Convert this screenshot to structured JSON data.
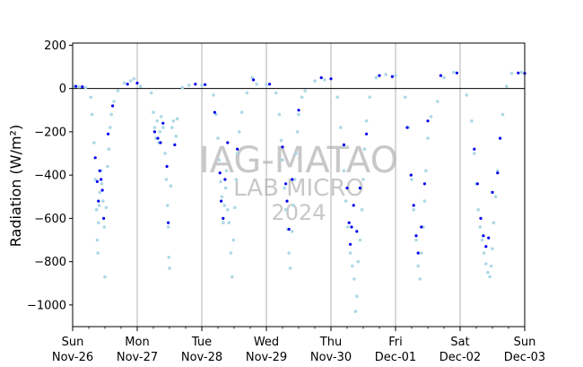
{
  "chart_data": {
    "type": "scatter",
    "ylabel": "Radiation (W/m²)",
    "ylim": [
      -1100,
      210
    ],
    "yticks": [
      200,
      0,
      -200,
      -400,
      -600,
      -800,
      -1000
    ],
    "xlim": [
      0,
      7
    ],
    "xticks": [
      {
        "x": 0,
        "day": "Sun",
        "date": "Nov-26"
      },
      {
        "x": 1,
        "day": "Mon",
        "date": "Nov-27"
      },
      {
        "x": 2,
        "day": "Tue",
        "date": "Nov-28"
      },
      {
        "x": 3,
        "day": "Wed",
        "date": "Nov-29"
      },
      {
        "x": 4,
        "day": "Thu",
        "date": "Nov-30"
      },
      {
        "x": 5,
        "day": "Fri",
        "date": "Dec-01"
      },
      {
        "x": 6,
        "day": "Sat",
        "date": "Dec-02"
      },
      {
        "x": 7,
        "day": "Sun",
        "date": "Dec-03"
      }
    ],
    "grid": "vertical",
    "zero_line": 0,
    "watermark": [
      "IAG-MATAO",
      "LAB MICRO",
      "2024"
    ],
    "colors": {
      "series_light": "#add8e6",
      "series_dark": "#0000ee",
      "zero_line": "#000000",
      "grid": "#b0b0b0",
      "watermark": "#c8c8c8"
    },
    "series": [
      {
        "values": [
          [
            0.02,
            10
          ],
          [
            0.1,
            8
          ],
          [
            0.2,
            5
          ],
          [
            0.28,
            -40
          ],
          [
            0.3,
            -120
          ],
          [
            0.33,
            -250
          ],
          [
            0.35,
            -420
          ],
          [
            0.37,
            -560
          ],
          [
            0.38,
            -700
          ],
          [
            0.39,
            -760
          ],
          [
            0.4,
            -620
          ],
          [
            0.41,
            -540
          ],
          [
            0.42,
            -480
          ],
          [
            0.44,
            -380
          ],
          [
            0.45,
            -440
          ],
          [
            0.47,
            -520
          ],
          [
            0.49,
            -640
          ],
          [
            0.5,
            -870
          ],
          [
            0.52,
            -550
          ],
          [
            0.54,
            -360
          ],
          [
            0.56,
            -280
          ],
          [
            0.58,
            -180
          ],
          [
            0.6,
            -120
          ],
          [
            0.64,
            -60
          ],
          [
            0.7,
            -10
          ],
          [
            0.8,
            25
          ],
          [
            0.9,
            35
          ],
          [
            0.95,
            45
          ],
          [
            1.05,
            10
          ],
          [
            1.22,
            -20
          ],
          [
            1.25,
            -110
          ],
          [
            1.27,
            -180
          ],
          [
            1.29,
            -230
          ],
          [
            1.31,
            -150
          ],
          [
            1.33,
            -250
          ],
          [
            1.35,
            -200
          ],
          [
            1.37,
            -130
          ],
          [
            1.4,
            -180
          ],
          [
            1.43,
            -300
          ],
          [
            1.45,
            -420
          ],
          [
            1.47,
            -540
          ],
          [
            1.48,
            -640
          ],
          [
            1.49,
            -780
          ],
          [
            1.5,
            -830
          ],
          [
            1.52,
            -450
          ],
          [
            1.54,
            -180
          ],
          [
            1.56,
            -150
          ],
          [
            1.6,
            -220
          ],
          [
            1.62,
            -140
          ],
          [
            1.7,
            5
          ],
          [
            1.8,
            15
          ],
          [
            2.0,
            15
          ],
          [
            2.18,
            -30
          ],
          [
            2.22,
            -120
          ],
          [
            2.25,
            -230
          ],
          [
            2.27,
            -330
          ],
          [
            2.29,
            -430
          ],
          [
            2.31,
            -500
          ],
          [
            2.33,
            -620
          ],
          [
            2.35,
            -540
          ],
          [
            2.37,
            -460
          ],
          [
            2.38,
            -380
          ],
          [
            2.4,
            -560
          ],
          [
            2.42,
            -620
          ],
          [
            2.45,
            -760
          ],
          [
            2.47,
            -870
          ],
          [
            2.49,
            -700
          ],
          [
            2.51,
            -550
          ],
          [
            2.53,
            -420
          ],
          [
            2.55,
            -300
          ],
          [
            2.58,
            -200
          ],
          [
            2.62,
            -110
          ],
          [
            2.7,
            -20
          ],
          [
            2.78,
            50
          ],
          [
            2.85,
            20
          ],
          [
            3.0,
            18
          ],
          [
            3.15,
            -20
          ],
          [
            3.2,
            -120
          ],
          [
            3.23,
            -240
          ],
          [
            3.25,
            -330
          ],
          [
            3.28,
            -460
          ],
          [
            3.3,
            -560
          ],
          [
            3.33,
            -650
          ],
          [
            3.35,
            -760
          ],
          [
            3.37,
            -830
          ],
          [
            3.4,
            -660
          ],
          [
            3.42,
            -540
          ],
          [
            3.44,
            -420
          ],
          [
            3.46,
            -300
          ],
          [
            3.48,
            -200
          ],
          [
            3.5,
            -120
          ],
          [
            3.55,
            -40
          ],
          [
            3.6,
            -10
          ],
          [
            3.75,
            35
          ],
          [
            3.9,
            40
          ],
          [
            4.1,
            -40
          ],
          [
            4.15,
            -180
          ],
          [
            4.2,
            -380
          ],
          [
            4.23,
            -520
          ],
          [
            4.26,
            -640
          ],
          [
            4.3,
            -760
          ],
          [
            4.33,
            -820
          ],
          [
            4.36,
            -880
          ],
          [
            4.38,
            -1030
          ],
          [
            4.4,
            -960
          ],
          [
            4.42,
            -800
          ],
          [
            4.45,
            -700
          ],
          [
            4.48,
            -560
          ],
          [
            4.5,
            -420
          ],
          [
            4.52,
            -280
          ],
          [
            4.55,
            -150
          ],
          [
            4.6,
            -40
          ],
          [
            4.7,
            50
          ],
          [
            4.85,
            65
          ],
          [
            5.0,
            60
          ],
          [
            5.15,
            -40
          ],
          [
            5.2,
            -180
          ],
          [
            5.25,
            -420
          ],
          [
            5.28,
            -560
          ],
          [
            5.32,
            -700
          ],
          [
            5.35,
            -820
          ],
          [
            5.38,
            -880
          ],
          [
            5.4,
            -760
          ],
          [
            5.43,
            -640
          ],
          [
            5.45,
            -520
          ],
          [
            5.47,
            -380
          ],
          [
            5.5,
            -230
          ],
          [
            5.55,
            -130
          ],
          [
            5.65,
            -60
          ],
          [
            5.75,
            50
          ],
          [
            5.9,
            75
          ],
          [
            6.1,
            -30
          ],
          [
            6.18,
            -150
          ],
          [
            6.22,
            -300
          ],
          [
            6.25,
            -440
          ],
          [
            6.28,
            -560
          ],
          [
            6.31,
            -640
          ],
          [
            6.34,
            -700
          ],
          [
            6.37,
            -760
          ],
          [
            6.4,
            -810
          ],
          [
            6.43,
            -850
          ],
          [
            6.46,
            -870
          ],
          [
            6.48,
            -820
          ],
          [
            6.5,
            -740
          ],
          [
            6.52,
            -620
          ],
          [
            6.55,
            -500
          ],
          [
            6.58,
            -380
          ],
          [
            6.62,
            -230
          ],
          [
            6.66,
            -120
          ],
          [
            6.72,
            10
          ],
          [
            6.8,
            70
          ],
          [
            6.95,
            75
          ]
        ]
      },
      {
        "values": [
          [
            0.05,
            10
          ],
          [
            0.15,
            8
          ],
          [
            0.35,
            -320
          ],
          [
            0.38,
            -430
          ],
          [
            0.4,
            -520
          ],
          [
            0.42,
            -380
          ],
          [
            0.44,
            -420
          ],
          [
            0.46,
            -470
          ],
          [
            0.48,
            -600
          ],
          [
            0.55,
            -210
          ],
          [
            0.62,
            -80
          ],
          [
            0.85,
            20
          ],
          [
            1.0,
            25
          ],
          [
            1.27,
            -200
          ],
          [
            1.32,
            -230
          ],
          [
            1.36,
            -250
          ],
          [
            1.4,
            -160
          ],
          [
            1.46,
            -360
          ],
          [
            1.48,
            -620
          ],
          [
            1.58,
            -260
          ],
          [
            1.9,
            20
          ],
          [
            2.05,
            18
          ],
          [
            2.2,
            -110
          ],
          [
            2.28,
            -390
          ],
          [
            2.3,
            -520
          ],
          [
            2.33,
            -600
          ],
          [
            2.36,
            -420
          ],
          [
            2.4,
            -250
          ],
          [
            2.55,
            -280
          ],
          [
            2.8,
            40
          ],
          [
            3.05,
            20
          ],
          [
            3.25,
            -270
          ],
          [
            3.3,
            -440
          ],
          [
            3.32,
            -520
          ],
          [
            3.35,
            -650
          ],
          [
            3.4,
            -420
          ],
          [
            3.5,
            -100
          ],
          [
            3.85,
            50
          ],
          [
            4.0,
            45
          ],
          [
            4.2,
            -260
          ],
          [
            4.25,
            -460
          ],
          [
            4.28,
            -620
          ],
          [
            4.3,
            -720
          ],
          [
            4.32,
            -640
          ],
          [
            4.35,
            -540
          ],
          [
            4.4,
            -660
          ],
          [
            4.45,
            -460
          ],
          [
            4.55,
            -210
          ],
          [
            4.75,
            60
          ],
          [
            4.95,
            55
          ],
          [
            5.18,
            -180
          ],
          [
            5.24,
            -400
          ],
          [
            5.28,
            -540
          ],
          [
            5.32,
            -680
          ],
          [
            5.35,
            -760
          ],
          [
            5.4,
            -640
          ],
          [
            5.45,
            -440
          ],
          [
            5.5,
            -150
          ],
          [
            5.7,
            60
          ],
          [
            5.95,
            72
          ],
          [
            6.22,
            -280
          ],
          [
            6.27,
            -440
          ],
          [
            6.32,
            -600
          ],
          [
            6.36,
            -680
          ],
          [
            6.4,
            -730
          ],
          [
            6.44,
            -690
          ],
          [
            6.5,
            -480
          ],
          [
            6.58,
            -390
          ],
          [
            6.62,
            -230
          ],
          [
            6.9,
            72
          ],
          [
            7.0,
            70
          ]
        ]
      }
    ]
  }
}
